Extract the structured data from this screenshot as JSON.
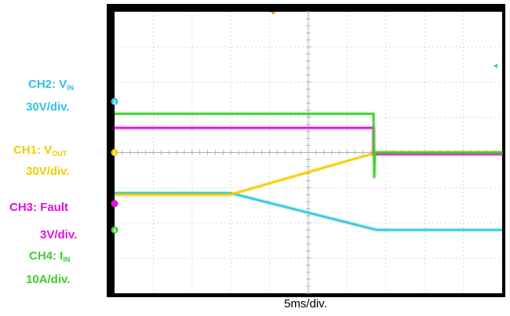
{
  "chart_data": {
    "type": "line",
    "title": "",
    "xlabel": "5ms/div.",
    "time_per_div_ms": 5,
    "x_divisions": 10,
    "y_divisions": 8,
    "grid": true,
    "background": "#ffffff",
    "series": [
      {
        "channel": "CH2",
        "name": "CH2: VIN",
        "label_main": "CH2: V",
        "label_sub": "IN",
        "scale": "30V/div.",
        "color": "#2ec4df",
        "marker": "2",
        "ref_div": 1.45,
        "x_ms": [
          0,
          14.9,
          33.8,
          50
        ],
        "y_div": [
          -1.15,
          -1.15,
          -2.2,
          -2.2
        ]
      },
      {
        "channel": "CH1",
        "name": "CH1: VOUT",
        "label_main": "CH1: V",
        "label_sub": "OUT",
        "scale": "30V/div.",
        "color": "#f2cc00",
        "marker": "1",
        "ref_div": 0.0,
        "x_ms": [
          0,
          14.9,
          33.8,
          50
        ],
        "y_div": [
          -1.2,
          -1.2,
          0,
          0
        ]
      },
      {
        "channel": "CH3",
        "name": "CH3: Fault",
        "label_main": "CH3: Fault",
        "label_sub": "",
        "scale": "3V/div.",
        "color": "#e012d8",
        "marker": "",
        "ref_div": -1.45,
        "x_ms": [
          0,
          33.4,
          33.4,
          50
        ],
        "y_div": [
          0.7,
          0.7,
          -0.05,
          -0.05
        ]
      },
      {
        "channel": "CH4",
        "name": "CH4: IIN",
        "label_main": "CH4: I",
        "label_sub": "IN",
        "scale": "10A/div.",
        "color": "#3ecc2e",
        "marker": "4",
        "ref_div": -2.2,
        "x_ms": [
          0,
          33.4,
          33.5,
          33.6,
          50
        ],
        "y_div": [
          1.1,
          1.1,
          -0.7,
          0.0,
          0.0
        ]
      }
    ]
  }
}
